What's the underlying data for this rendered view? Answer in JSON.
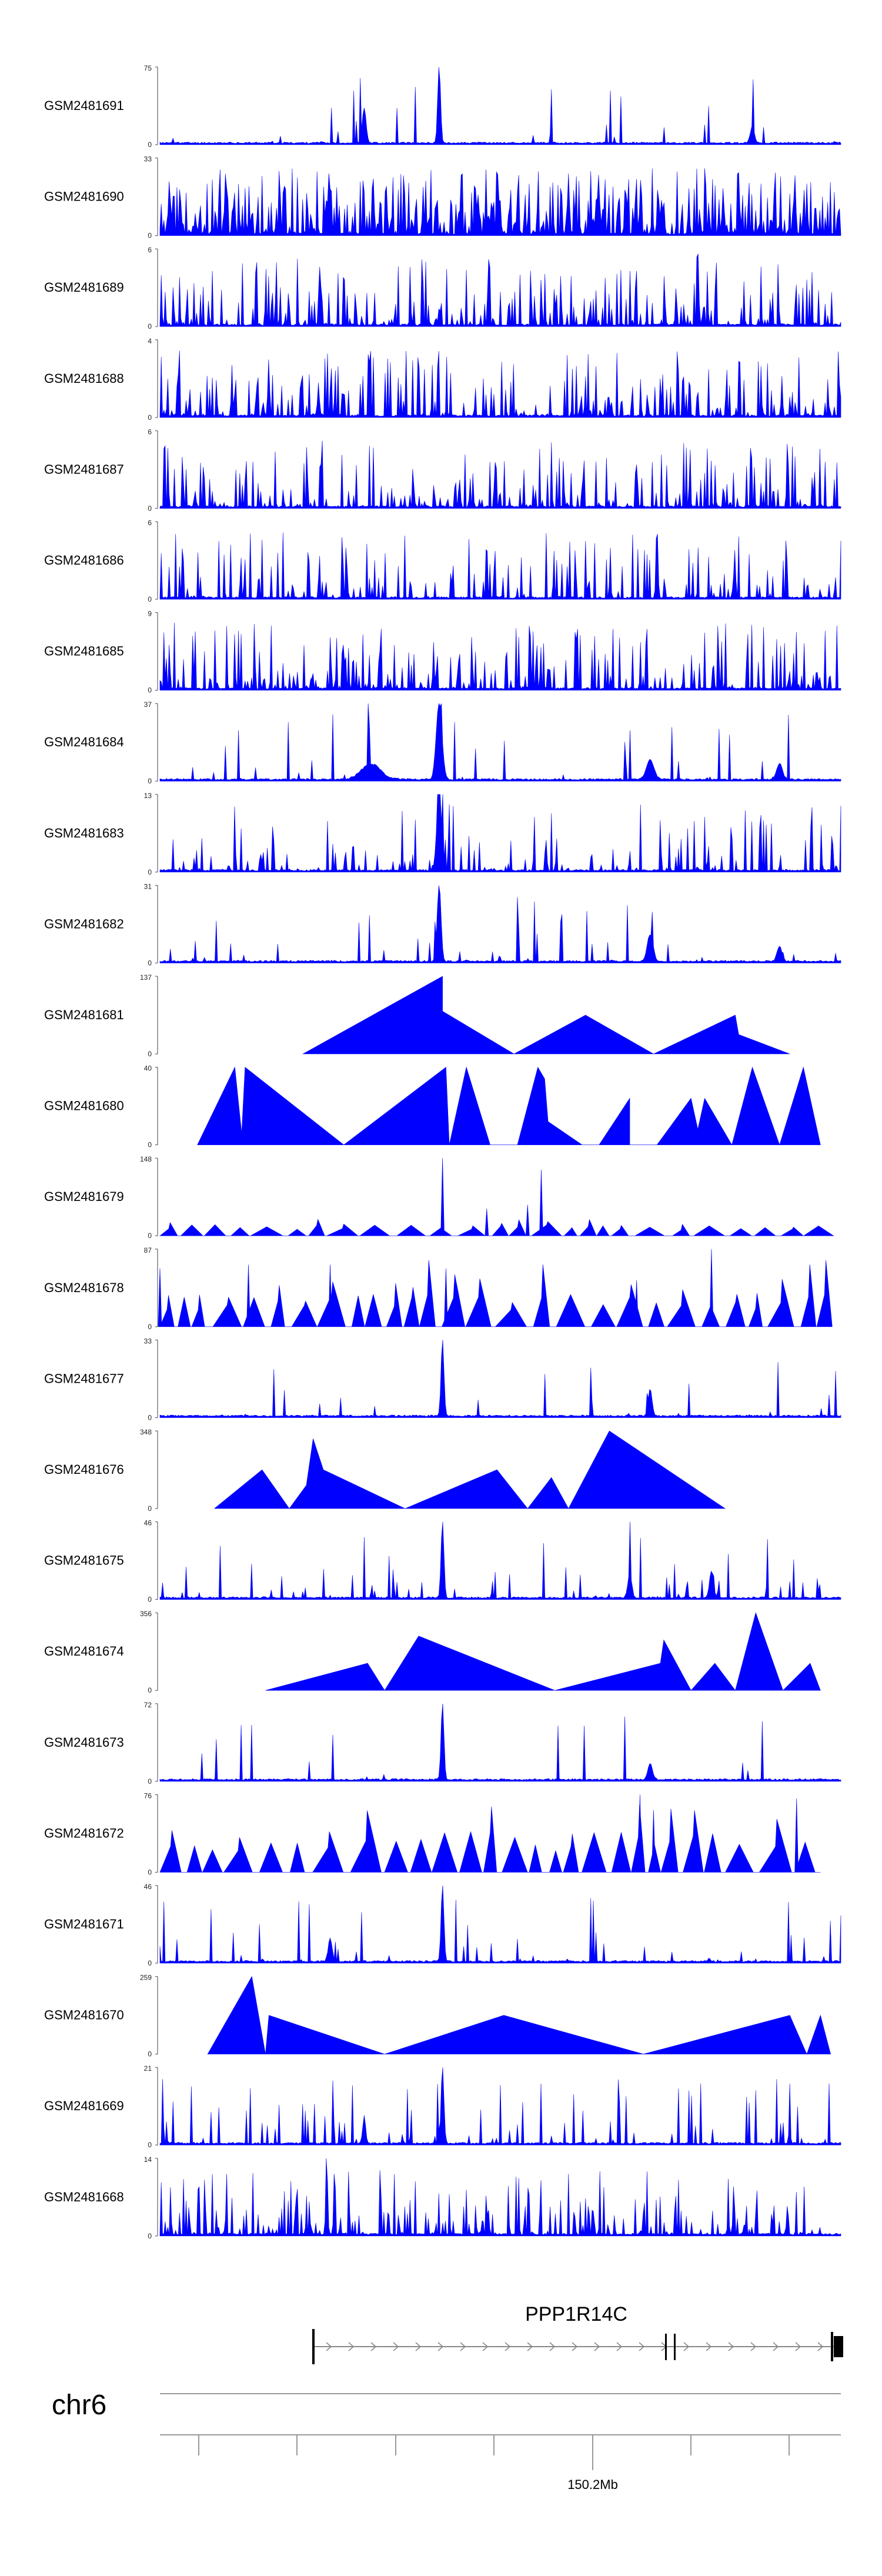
{
  "chart_data": {
    "type": "area",
    "chromosome": "chr6",
    "gene": "PPP1R14C",
    "axis_tick_label": "150.2Mb",
    "color": "#0000ff",
    "series": [
      {
        "name": "GSM2481691",
        "max": 75,
        "style": "noise",
        "seed": 11,
        "density": 0.05,
        "peaks": [
          [
            0.3,
            0.45,
            0.004
          ],
          [
            0.41,
            1.0,
            0.003
          ],
          [
            0.87,
            0.22,
            0.004
          ]
        ]
      },
      {
        "name": "GSM2481690",
        "max": 33,
        "style": "noise",
        "seed": 12,
        "density": 0.9,
        "peaks": []
      },
      {
        "name": "GSM2481689",
        "max": 6,
        "style": "noise",
        "seed": 13,
        "density": 0.5,
        "peaks": [
          [
            0.79,
            0.95,
            0.002
          ]
        ]
      },
      {
        "name": "GSM2481688",
        "max": 4,
        "style": "noise",
        "seed": 14,
        "density": 0.55,
        "peaks": []
      },
      {
        "name": "GSM2481687",
        "max": 6,
        "style": "noise",
        "seed": 15,
        "density": 0.45,
        "peaks": []
      },
      {
        "name": "GSM2481686",
        "max": 6,
        "style": "noise",
        "seed": 16,
        "density": 0.35,
        "peaks": [
          [
            0.73,
            0.95,
            0.002
          ]
        ]
      },
      {
        "name": "GSM2481685",
        "max": 9,
        "style": "noise",
        "seed": 17,
        "density": 0.5,
        "peaks": []
      },
      {
        "name": "GSM2481684",
        "max": 37,
        "style": "noise",
        "seed": 18,
        "density": 0.08,
        "peaks": [
          [
            0.41,
            1.0,
            0.006
          ],
          [
            0.31,
            0.2,
            0.02
          ],
          [
            0.72,
            0.25,
            0.008
          ],
          [
            0.91,
            0.2,
            0.006
          ]
        ]
      },
      {
        "name": "GSM2481683",
        "max": 13,
        "style": "noise",
        "seed": 19,
        "density": 0.25,
        "peaks": [
          [
            0.41,
            1.0,
            0.005
          ]
        ]
      },
      {
        "name": "GSM2481682",
        "max": 31,
        "style": "noise",
        "seed": 20,
        "density": 0.08,
        "peaks": [
          [
            0.41,
            1.0,
            0.004
          ],
          [
            0.72,
            0.35,
            0.006
          ],
          [
            0.91,
            0.2,
            0.005
          ]
        ]
      },
      {
        "name": "GSM2481681",
        "max": 137,
        "style": "poly",
        "poly": [
          [
            0.21,
            0
          ],
          [
            0.415,
            1
          ],
          [
            0.415,
            0.55
          ],
          [
            0.52,
            0
          ],
          [
            0.625,
            0.5
          ],
          [
            0.725,
            0
          ],
          [
            0.845,
            0.5
          ],
          [
            0.85,
            0.25
          ],
          [
            0.925,
            0
          ]
        ]
      },
      {
        "name": "GSM2481680",
        "max": 40,
        "style": "poly",
        "poly": [
          [
            0.055,
            0
          ],
          [
            0.11,
            1
          ],
          [
            0.12,
            0.15
          ],
          [
            0.125,
            1
          ],
          [
            0.27,
            0
          ],
          [
            0.42,
            1
          ],
          [
            0.425,
            0
          ],
          [
            0.45,
            1
          ],
          [
            0.485,
            0
          ],
          [
            0.525,
            0
          ],
          [
            0.555,
            1
          ],
          [
            0.565,
            0.85
          ],
          [
            0.57,
            0.3
          ],
          [
            0.62,
            0
          ],
          [
            0.6,
            0
          ],
          [
            0.645,
            0
          ],
          [
            0.69,
            0.6
          ],
          [
            0.69,
            0
          ],
          [
            0.73,
            0
          ],
          [
            0.78,
            0.6
          ],
          [
            0.79,
            0.2
          ],
          [
            0.8,
            0.6
          ],
          [
            0.84,
            0
          ],
          [
            0.87,
            1
          ],
          [
            0.91,
            0
          ],
          [
            0.945,
            1
          ],
          [
            0.97,
            0
          ]
        ]
      },
      {
        "name": "GSM2481679",
        "max": 148,
        "style": "spiky",
        "seed": 21,
        "tri": 0.12,
        "spikes": [
          [
            0.415,
            1.0
          ],
          [
            0.56,
            0.85
          ],
          [
            0.54,
            0.4
          ],
          [
            0.48,
            0.35
          ]
        ]
      },
      {
        "name": "GSM2481678",
        "max": 87,
        "style": "spiky",
        "seed": 22,
        "tri": 0.35,
        "spikes": [
          [
            0.0,
            0.75
          ],
          [
            0.13,
            0.8
          ],
          [
            0.25,
            0.8
          ],
          [
            0.42,
            0.75
          ],
          [
            0.81,
            1.0
          ],
          [
            0.7,
            0.6
          ]
        ]
      },
      {
        "name": "GSM2481677",
        "max": 33,
        "style": "noise",
        "seed": 23,
        "density": 0.06,
        "peaks": [
          [
            0.415,
            1.0,
            0.003
          ],
          [
            0.72,
            0.35,
            0.004
          ]
        ]
      },
      {
        "name": "GSM2481676",
        "max": 348,
        "style": "poly",
        "poly": [
          [
            0.08,
            0
          ],
          [
            0.15,
            0.5
          ],
          [
            0.19,
            0
          ],
          [
            0.215,
            0.3
          ],
          [
            0.225,
            0.9
          ],
          [
            0.24,
            0.5
          ],
          [
            0.36,
            0
          ],
          [
            0.495,
            0.5
          ],
          [
            0.54,
            0
          ],
          [
            0.575,
            0.4
          ],
          [
            0.6,
            0
          ],
          [
            0.66,
            1.0
          ],
          [
            0.83,
            0
          ]
        ]
      },
      {
        "name": "GSM2481675",
        "max": 46,
        "style": "noise",
        "seed": 24,
        "density": 0.15,
        "peaks": [
          [
            0.415,
            1.0,
            0.003
          ],
          [
            0.69,
            0.3,
            0.004
          ],
          [
            0.81,
            0.35,
            0.004
          ]
        ]
      },
      {
        "name": "GSM2481674",
        "max": 356,
        "style": "poly",
        "poly": [
          [
            0.155,
            0
          ],
          [
            0.305,
            0.35
          ],
          [
            0.33,
            0
          ],
          [
            0.38,
            0.7
          ],
          [
            0.58,
            0
          ],
          [
            0.735,
            0.35
          ],
          [
            0.74,
            0.65
          ],
          [
            0.78,
            0
          ],
          [
            0.815,
            0.35
          ],
          [
            0.845,
            0
          ],
          [
            0.875,
            1.0
          ],
          [
            0.915,
            0
          ],
          [
            0.955,
            0.35
          ],
          [
            0.97,
            0
          ]
        ]
      },
      {
        "name": "GSM2481673",
        "max": 72,
        "style": "noise",
        "seed": 25,
        "density": 0.04,
        "peaks": [
          [
            0.415,
            1.0,
            0.003
          ],
          [
            0.72,
            0.2,
            0.005
          ]
        ]
      },
      {
        "name": "GSM2481672",
        "max": 76,
        "style": "spiky",
        "seed": 26,
        "tri": 0.45,
        "spikes": [
          [
            0.705,
            1.0
          ],
          [
            0.935,
            0.95
          ],
          [
            0.725,
            0.8
          ]
        ]
      },
      {
        "name": "GSM2481671",
        "max": 46,
        "style": "noise",
        "seed": 27,
        "density": 0.12,
        "peaks": [
          [
            0.415,
            1.0,
            0.003
          ],
          [
            0.25,
            0.3,
            0.004
          ]
        ]
      },
      {
        "name": "GSM2481670",
        "max": 259,
        "style": "poly",
        "poly": [
          [
            0.07,
            0
          ],
          [
            0.135,
            1.0
          ],
          [
            0.155,
            0
          ],
          [
            0.16,
            0.5
          ],
          [
            0.33,
            0
          ],
          [
            0.505,
            0.5
          ],
          [
            0.71,
            0
          ],
          [
            0.925,
            0.5
          ],
          [
            0.95,
            0
          ],
          [
            0.97,
            0.5
          ],
          [
            0.985,
            0
          ]
        ]
      },
      {
        "name": "GSM2481669",
        "max": 21,
        "style": "noise",
        "seed": 28,
        "density": 0.2,
        "peaks": [
          [
            0.415,
            1.0,
            0.003
          ],
          [
            0.3,
            0.35,
            0.003
          ]
        ]
      },
      {
        "name": "GSM2481668",
        "max": 14,
        "style": "noise",
        "seed": 29,
        "density": 0.5,
        "peaks": [
          [
            0.245,
            0.9,
            0.002
          ]
        ]
      }
    ]
  }
}
